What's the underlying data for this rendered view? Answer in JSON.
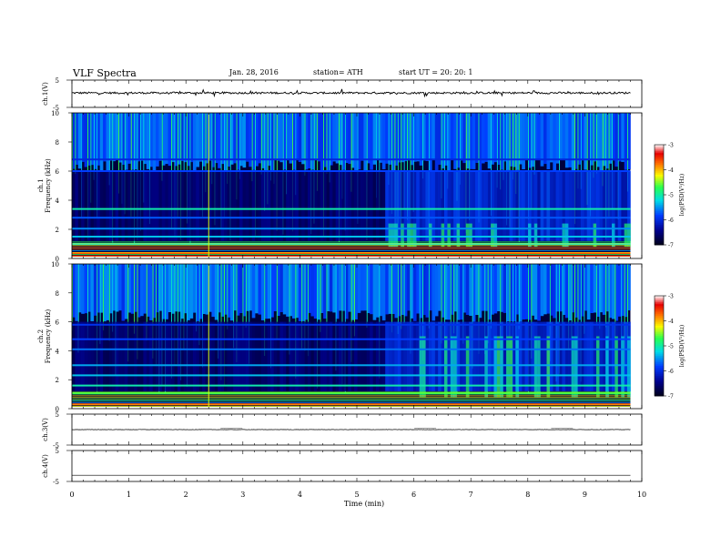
{
  "header": {
    "title": "VLF  Spectra",
    "date": "Jan. 28, 2016",
    "station": "station= ATH",
    "start": "start  UT  =    20: 20: 1"
  },
  "chart_data": [
    {
      "type": "line",
      "name_label": "ch.1(V)",
      "ylabel": "ch.1(V)",
      "yticks": [
        "5",
        "-5"
      ],
      "ylim": [
        -5,
        5
      ],
      "xlim": [
        0,
        10
      ],
      "level": 0.3,
      "jitter": 0.35,
      "data_end_min": 9.8
    },
    {
      "type": "heatmap",
      "ylabel_top": "ch.1",
      "ylabel": "Frequency  (kHz)",
      "ylim": [
        0,
        10
      ],
      "yticks": [
        "0",
        "2",
        "4",
        "6",
        "8",
        "10"
      ],
      "xlim": [
        0,
        10
      ],
      "data_end_min": 9.8,
      "colorbar": {
        "label": "log(PSD(V²/Hz)",
        "ticks": [
          "-3",
          "-4",
          "-5",
          "-6",
          "-7"
        ],
        "range": [
          -7,
          -3
        ]
      },
      "emission_bands_khz": [
        {
          "f": 0.15,
          "level": -3.4
        },
        {
          "f": 0.35,
          "level": -3.6
        },
        {
          "f": 1.0,
          "level": -5.2
        },
        {
          "f": 1.5,
          "level": -5.3
        },
        {
          "f": 2.05,
          "level": -5.5
        },
        {
          "f": 2.8,
          "level": -5.7
        },
        {
          "f": 3.4,
          "level": -5.0
        },
        {
          "f": 6.0,
          "level": -5.8
        },
        {
          "f": 6.8,
          "level": -6.0
        }
      ]
    },
    {
      "type": "heatmap",
      "ylabel_top": "ch.2",
      "ylabel": "Frequency  (kHz)",
      "ylim": [
        0,
        10
      ],
      "yticks": [
        "0",
        "2",
        "4",
        "6",
        "8",
        "10"
      ],
      "xlim": [
        0,
        10
      ],
      "data_end_min": 9.8,
      "colorbar": {
        "label": "log(PSD(V²/Hz)",
        "ticks": [
          "-3",
          "-4",
          "-5",
          "-6",
          "-7"
        ],
        "range": [
          -7,
          -3
        ]
      },
      "emission_bands_khz": [
        {
          "f": 0.3,
          "level": -3.6
        },
        {
          "f": 1.1,
          "level": -4.6
        },
        {
          "f": 1.6,
          "level": -5.0
        },
        {
          "f": 2.3,
          "level": -5.3
        },
        {
          "f": 3.0,
          "level": -5.4
        },
        {
          "f": 4.1,
          "level": -5.6
        },
        {
          "f": 4.8,
          "level": -5.8
        },
        {
          "f": 5.8,
          "level": -5.9
        }
      ]
    },
    {
      "type": "line",
      "ylabel": "ch.3(V)",
      "yticks": [
        "5",
        "-5"
      ],
      "ylim": [
        -5,
        5
      ],
      "xlim": [
        0,
        10
      ],
      "level": 0.0,
      "jitter": 0.05,
      "data_end_min": 9.8
    },
    {
      "type": "line",
      "ylabel": "ch.4(V)",
      "yticks": [
        "5",
        "-5"
      ],
      "ylim": [
        -5,
        5
      ],
      "xlim": [
        0,
        10
      ],
      "level": -3.0,
      "jitter": 0.0,
      "data_end_min": 9.8
    }
  ],
  "xaxis": {
    "label": "Time  (min)",
    "ticks": [
      "0",
      "1",
      "2",
      "3",
      "4",
      "5",
      "6",
      "7",
      "8",
      "9",
      "10"
    ]
  }
}
